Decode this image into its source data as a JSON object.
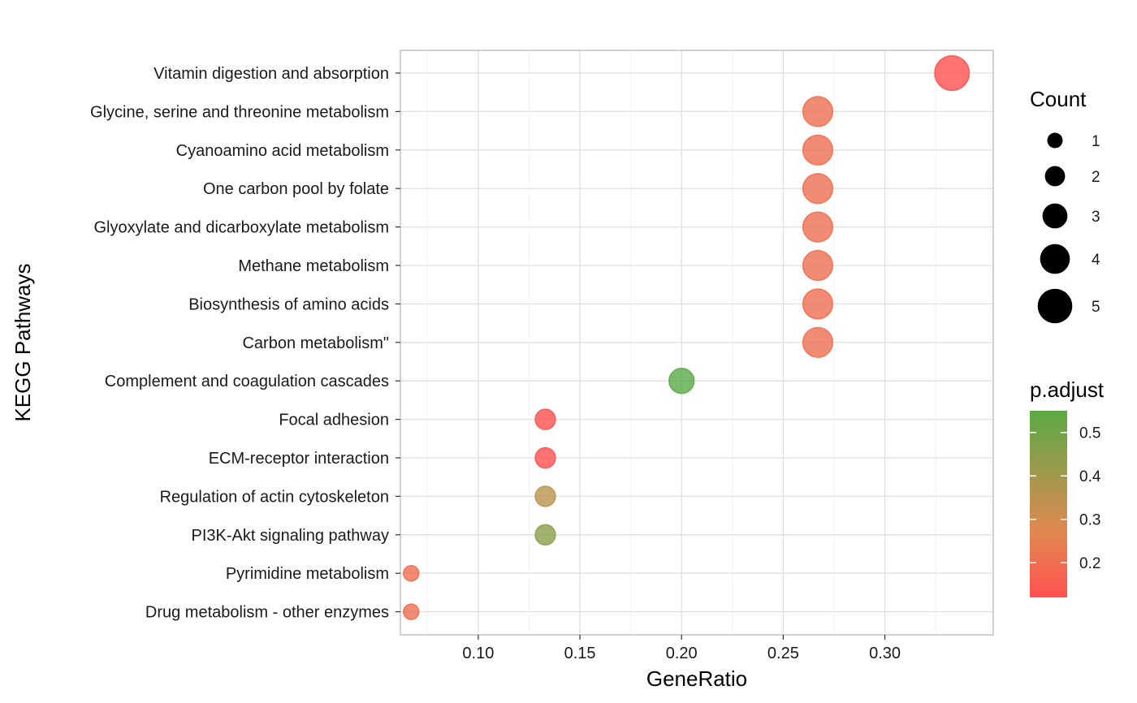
{
  "chart_data": {
    "type": "scatter",
    "title": "",
    "xlabel": "GeneRatio",
    "ylabel": "KEGG Pathways",
    "xlim": [
      0.0617,
      0.3533
    ],
    "xticks": [
      0.1,
      0.15,
      0.2,
      0.25,
      0.3
    ],
    "xtick_labels": [
      "0.10",
      "0.15",
      "0.20",
      "0.25",
      "0.30"
    ],
    "grid": true,
    "categories": [
      "Vitamin digestion and absorption",
      "Glycine, serine and threonine metabolism",
      "Cyanoamino acid metabolism",
      "One carbon pool by folate",
      "Glyoxylate and dicarboxylate metabolism",
      "Methane metabolism",
      "Biosynthesis of amino acids",
      "Carbon metabolism\"",
      "Complement and coagulation cascades",
      "Focal adhesion",
      "ECM-receptor interaction",
      "Regulation of actin cytoskeleton",
      "PI3K-Akt signaling pathway",
      "Pyrimidine metabolism",
      "Drug metabolism - other enzymes"
    ],
    "points": [
      {
        "pathway": "Vitamin digestion and absorption",
        "gene_ratio": 0.333,
        "count": 5,
        "p_adjust": 0.12
      },
      {
        "pathway": "Glycine, serine and threonine metabolism",
        "gene_ratio": 0.267,
        "count": 4,
        "p_adjust": 0.2
      },
      {
        "pathway": "Cyanoamino acid metabolism",
        "gene_ratio": 0.267,
        "count": 4,
        "p_adjust": 0.2
      },
      {
        "pathway": "One carbon pool by folate",
        "gene_ratio": 0.267,
        "count": 4,
        "p_adjust": 0.2
      },
      {
        "pathway": "Glyoxylate and dicarboxylate metabolism",
        "gene_ratio": 0.267,
        "count": 4,
        "p_adjust": 0.2
      },
      {
        "pathway": "Methane metabolism",
        "gene_ratio": 0.267,
        "count": 4,
        "p_adjust": 0.2
      },
      {
        "pathway": "Biosynthesis of amino acids",
        "gene_ratio": 0.267,
        "count": 4,
        "p_adjust": 0.2
      },
      {
        "pathway": "Carbon metabolism\"",
        "gene_ratio": 0.267,
        "count": 4,
        "p_adjust": 0.2
      },
      {
        "pathway": "Complement and coagulation cascades",
        "gene_ratio": 0.2,
        "count": 3,
        "p_adjust": 0.55
      },
      {
        "pathway": "Focal adhesion",
        "gene_ratio": 0.133,
        "count": 2,
        "p_adjust": 0.12
      },
      {
        "pathway": "ECM-receptor interaction",
        "gene_ratio": 0.133,
        "count": 2,
        "p_adjust": 0.12
      },
      {
        "pathway": "Regulation of actin cytoskeleton",
        "gene_ratio": 0.133,
        "count": 2,
        "p_adjust": 0.35
      },
      {
        "pathway": "PI3K-Akt signaling pathway",
        "gene_ratio": 0.133,
        "count": 2,
        "p_adjust": 0.45
      },
      {
        "pathway": "Pyrimidine metabolism",
        "gene_ratio": 0.067,
        "count": 1,
        "p_adjust": 0.2
      },
      {
        "pathway": "Drug metabolism - other enzymes",
        "gene_ratio": 0.067,
        "count": 1,
        "p_adjust": 0.2
      }
    ],
    "size_legend": {
      "title": "Count",
      "values": [
        1,
        2,
        3,
        4,
        5
      ],
      "labels": [
        "1",
        "2",
        "3",
        "4",
        "5"
      ]
    },
    "color_legend": {
      "title": "p.adjust",
      "range": [
        0.12,
        0.55
      ],
      "ticks": [
        0.5,
        0.4,
        0.3,
        0.2
      ],
      "tick_labels": [
        "0.5",
        "0.4",
        "0.3",
        "0.2"
      ],
      "low_color": "#ff5050",
      "mid_color": "#e08850",
      "high_color": "#5aaa46"
    },
    "legend_position": "right",
    "point_opacity": 0.8
  }
}
